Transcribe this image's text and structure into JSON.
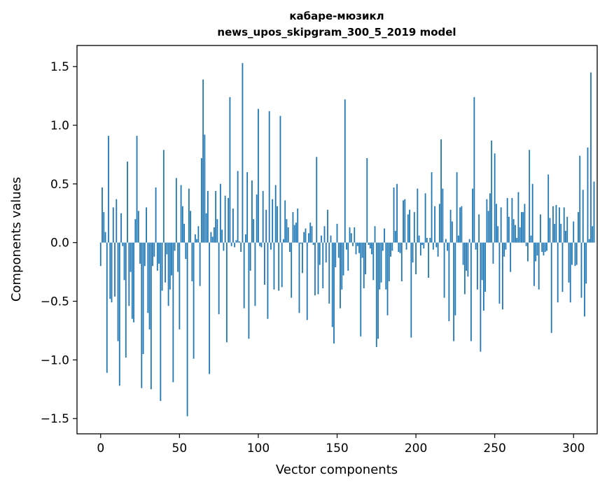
{
  "chart_data": {
    "type": "bar",
    "title_line1": "кабаре-мюзикл",
    "title_line2": "news_upos_skipgram_300_5_2019 model",
    "xlabel": "Vector components",
    "ylabel": "Components values",
    "xlim": [
      -15,
      315
    ],
    "ylim": [
      -1.63,
      1.68
    ],
    "xticks": [
      0,
      50,
      100,
      150,
      200,
      250,
      300
    ],
    "yticks": [
      -1.5,
      -1.0,
      -0.5,
      0.0,
      0.5,
      1.0,
      1.5
    ],
    "ytick_labels": [
      "−1.5",
      "−1.0",
      "−0.5",
      "0.0",
      "0.5",
      "1.0",
      "1.5"
    ],
    "bar_color": "#1f77b4",
    "grid": false,
    "values": [
      -0.2,
      0.47,
      0.26,
      0.09,
      -1.11,
      0.91,
      -0.48,
      -0.51,
      0.3,
      -0.46,
      0.37,
      -0.84,
      -1.22,
      0.25,
      -0.03,
      -0.32,
      -0.98,
      0.69,
      -0.54,
      -0.25,
      -0.65,
      -0.68,
      0.2,
      0.91,
      0.27,
      -0.18,
      -1.24,
      -0.95,
      -0.2,
      0.3,
      -0.6,
      -0.74,
      -1.25,
      -0.2,
      -0.12,
      0.47,
      -0.24,
      -0.18,
      -1.35,
      -0.41,
      0.79,
      -0.34,
      -0.1,
      -0.54,
      -0.4,
      -0.28,
      -1.19,
      -0.07,
      0.55,
      -0.25,
      -0.74,
      0.49,
      0.31,
      0.16,
      -0.14,
      -1.48,
      0.46,
      0.27,
      -0.33,
      -0.99,
      0.07,
      0.03,
      0.14,
      -0.37,
      0.72,
      1.39,
      0.92,
      0.25,
      0.44,
      -1.12,
      0.09,
      0.05,
      0.13,
      0.44,
      0.2,
      -0.61,
      0.5,
      0.11,
      -0.07,
      0.4,
      -0.85,
      0.38,
      1.24,
      -0.03,
      0.29,
      -0.04,
      0.02,
      0.61,
      0.01,
      -0.08,
      1.53,
      -0.56,
      0.07,
      0.6,
      -0.82,
      -0.24,
      0.53,
      0.2,
      -0.54,
      0.41,
      1.14,
      -0.03,
      -0.04,
      0.44,
      -0.36,
      0.28,
      -0.65,
      1.12,
      -0.06,
      0.37,
      -0.4,
      0.49,
      0.31,
      -0.41,
      1.08,
      -0.38,
      0.03,
      0.36,
      0.2,
      0.13,
      -0.08,
      -0.47,
      0.26,
      0.15,
      0.17,
      0.29,
      -0.6,
      -0.01,
      -0.26,
      0.09,
      0.12,
      -0.66,
      0.08,
      0.17,
      0.14,
      -0.02,
      -0.45,
      0.73,
      -0.44,
      -0.19,
      0.06,
      -0.39,
      0.14,
      -0.17,
      0.28,
      -0.52,
      0.06,
      -0.72,
      -0.86,
      -0.21,
      0.16,
      -0.13,
      -0.56,
      -0.4,
      -0.28,
      1.22,
      -0.06,
      -0.24,
      0.13,
      0.08,
      -0.03,
      0.13,
      -0.1,
      -0.03,
      -0.09,
      -0.8,
      -0.13,
      -0.39,
      -0.27,
      0.72,
      -0.02,
      -0.05,
      -0.1,
      -0.32,
      0.14,
      -0.89,
      -0.82,
      -0.4,
      -0.34,
      -0.07,
      0.12,
      -0.4,
      -0.62,
      -0.33,
      -0.12,
      -0.07,
      0.47,
      0.1,
      0.5,
      -0.08,
      -0.09,
      -0.33,
      0.36,
      0.37,
      -0.06,
      0.24,
      0.28,
      -0.81,
      -0.17,
      0.26,
      -0.27,
      0.46,
      0.06,
      -0.11,
      -0.02,
      -0.05,
      0.42,
      0.04,
      -0.3,
      0.04,
      0.6,
      -0.06,
      0.31,
      -0.04,
      -0.12,
      0.33,
      0.88,
      0.46,
      -0.47,
      0.03,
      -0.07,
      -0.67,
      0.28,
      0.18,
      -0.84,
      -0.62,
      0.6,
      0.06,
      0.3,
      0.31,
      -0.19,
      -0.44,
      -0.24,
      -0.29,
      0.03,
      -0.84,
      0.46,
      1.24,
      -0.06,
      -0.4,
      0.24,
      -0.93,
      -0.32,
      -0.58,
      -0.42,
      0.37,
      0.27,
      0.42,
      0.87,
      -0.18,
      0.76,
      0.33,
      0.14,
      -0.52,
      0.3,
      -0.57,
      -0.12,
      -0.06,
      0.38,
      0.22,
      -0.25,
      0.38,
      0.2,
      0.15,
      0.04,
      0.43,
      0.13,
      0.26,
      0.26,
      0.33,
      -0.03,
      -0.16,
      0.79,
      0.06,
      0.5,
      -0.37,
      -0.16,
      -0.11,
      -0.4,
      0.24,
      -0.08,
      -0.11,
      -0.08,
      -0.07,
      0.58,
      0.21,
      -0.77,
      0.31,
      0.16,
      0.32,
      -0.51,
      0.3,
      0.16,
      -0.42,
      0.3,
      0.1,
      0.22,
      -0.34,
      -0.51,
      -0.19,
      0.18,
      -0.2,
      -0.19,
      0.26,
      0.74,
      -0.47,
      0.45,
      -0.63,
      -0.35,
      0.81,
      0.03,
      1.45,
      0.14,
      0.52
    ]
  }
}
